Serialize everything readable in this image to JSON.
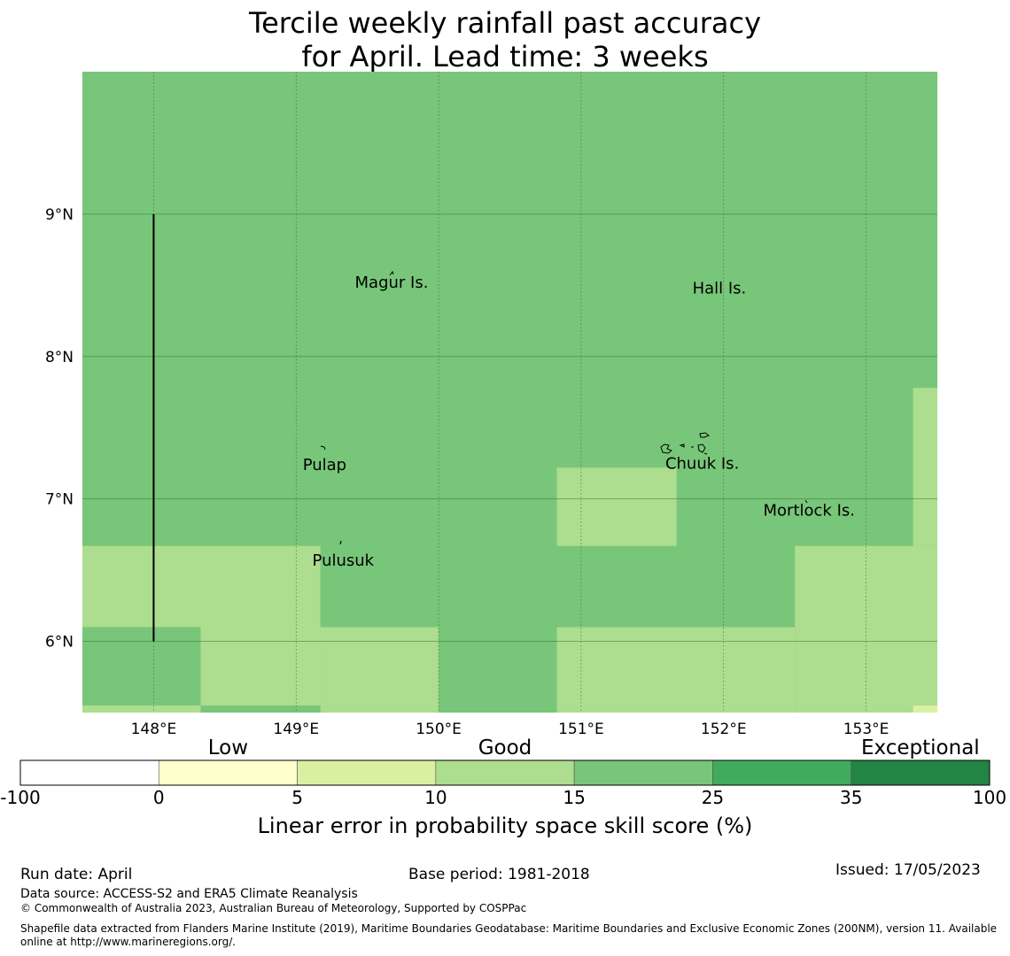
{
  "title": {
    "line1": "Tercile weekly rainfall past accuracy",
    "line2": "for April. Lead time: 3 weeks"
  },
  "map": {
    "extent": {
      "lon_min": 147.5,
      "lon_max": 153.5,
      "lat_min": 5.5,
      "lat_max": 10.0
    },
    "lon_ticks": [
      {
        "value": 148,
        "label": "148°E"
      },
      {
        "value": 149,
        "label": "149°E"
      },
      {
        "value": 150,
        "label": "150°E"
      },
      {
        "value": 151,
        "label": "151°E"
      },
      {
        "value": 152,
        "label": "152°E"
      },
      {
        "value": 153,
        "label": "153°E"
      }
    ],
    "lat_ticks": [
      {
        "value": 9,
        "label": "9°N"
      },
      {
        "value": 8,
        "label": "8°N"
      },
      {
        "value": 7,
        "label": "7°N"
      },
      {
        "value": 6,
        "label": "6°N"
      }
    ],
    "grid": true,
    "boundary_line": {
      "lon": 148.0,
      "lat_from": 6.0,
      "lat_to": 9.0
    },
    "cells": [
      {
        "lon": [
          147.5,
          153.5
        ],
        "lat": [
          5.5,
          10.0
        ],
        "score": 20
      },
      {
        "lon": [
          147.5,
          148.33
        ],
        "lat": [
          5.5,
          6.67
        ],
        "score": 12
      },
      {
        "lon": [
          148.33,
          149.17
        ],
        "lat": [
          5.5,
          6.67
        ],
        "score": 12
      },
      {
        "lon": [
          149.17,
          150.0
        ],
        "lat": [
          5.5,
          6.1
        ],
        "score": 12
      },
      {
        "lon": [
          147.5,
          148.33
        ],
        "lat": [
          5.55,
          6.1
        ],
        "score": 20
      },
      {
        "lon": [
          148.33,
          149.17
        ],
        "lat": [
          5.5,
          5.55
        ],
        "score": 20
      },
      {
        "lon": [
          150.83,
          152.5
        ],
        "lat": [
          5.5,
          6.1
        ],
        "score": 12
      },
      {
        "lon": [
          152.5,
          153.5
        ],
        "lat": [
          5.5,
          6.67
        ],
        "score": 12
      },
      {
        "lon": [
          150.83,
          151.67
        ],
        "lat": [
          6.67,
          7.22
        ],
        "score": 12
      },
      {
        "lon": [
          153.33,
          153.5
        ],
        "lat": [
          6.67,
          7.78
        ],
        "score": 12
      },
      {
        "lon": [
          153.33,
          153.5
        ],
        "lat": [
          5.5,
          5.55
        ],
        "score": 7
      }
    ],
    "places": [
      {
        "name": "Magur Is.",
        "lon": 149.67,
        "lat": 8.52
      },
      {
        "name": "Hall Is.",
        "lon": 151.97,
        "lat": 8.48
      },
      {
        "name": "Pulap",
        "lon": 149.2,
        "lat": 7.24
      },
      {
        "name": "Chuuk Is.",
        "lon": 151.85,
        "lat": 7.25
      },
      {
        "name": "Mortlock Is.",
        "lon": 152.6,
        "lat": 6.92
      },
      {
        "name": "Pulusuk",
        "lon": 149.33,
        "lat": 6.57
      }
    ]
  },
  "colorbar": {
    "bounds": [
      -100,
      0,
      5,
      10,
      15,
      25,
      35,
      100
    ],
    "tick_labels": [
      "-100",
      "0",
      "5",
      "10",
      "15",
      "25",
      "35",
      "100"
    ],
    "colors": [
      "#ffffff",
      "#ffffcc",
      "#d9f0a3",
      "#addd8e",
      "#78c679",
      "#41ab5d",
      "#238443"
    ],
    "categories": [
      {
        "label": "Low",
        "at_index": 1.5
      },
      {
        "label": "Good",
        "at_index": 3.5
      },
      {
        "label": "Exceptional",
        "at_index": 6.5
      }
    ],
    "title": "Linear error in probability space skill score (%)"
  },
  "footer": {
    "run_date": "Run date: April",
    "base_period": "Base period: 1981-2018",
    "issued": "Issued: 17/05/2023",
    "data_source": "Data source: ACCESS-S2 and ERA5 Climate Reanalysis",
    "copyright": "© Commonwealth of Australia 2023, Australian Bureau of Meteorology, Supported by COSPPac",
    "shapefile": "Shapefile data extracted from Flanders Marine Institute (2019), Maritime Boundaries Geodatabase: Maritime Boundaries and Exclusive Economic Zones (200NM), version 11. Available online at http://www.marineregions.org/."
  }
}
